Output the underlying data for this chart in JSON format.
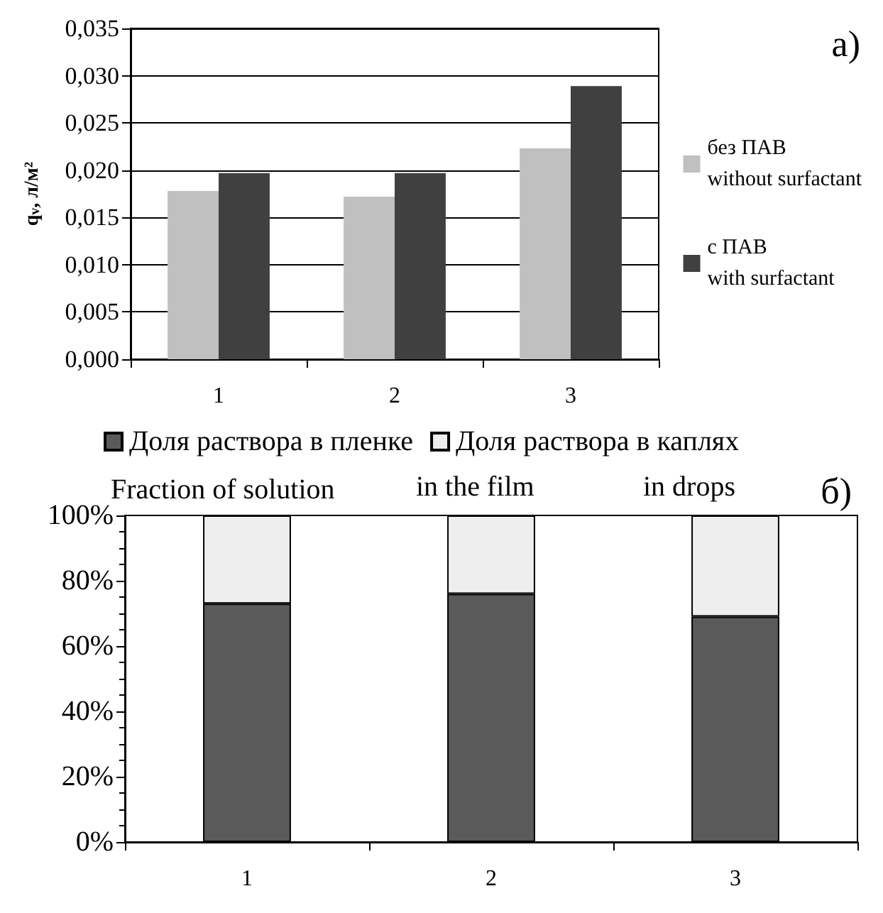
{
  "chart_data": [
    {
      "type": "bar",
      "annotations": [
        "а)"
      ],
      "ylabel": "q$_{v}$, л/м²",
      "categories": [
        "1",
        "2",
        "3"
      ],
      "series": [
        {
          "name": "без ПАВ\nwithout surfactant",
          "color": "#c0c0c0",
          "values": [
            0.0178,
            0.0172,
            0.0223
          ]
        },
        {
          "name": "с ПАВ\nwith surfactant",
          "color": "#404040",
          "values": [
            0.0197,
            0.0197,
            0.0289
          ]
        }
      ],
      "ylim": [
        0,
        0.035
      ],
      "yticks": [
        {
          "value": 0,
          "label": "0,000"
        },
        {
          "value": 0.005,
          "label": "0,005"
        },
        {
          "value": 0.01,
          "label": "0,010"
        },
        {
          "value": 0.015,
          "label": "0,015"
        },
        {
          "value": 0.02,
          "label": "0,020"
        },
        {
          "value": 0.025,
          "label": "0,025"
        },
        {
          "value": 0.03,
          "label": "0,030"
        },
        {
          "value": 0.035,
          "label": "0,035"
        }
      ],
      "grid": "y",
      "legend": "right"
    },
    {
      "type": "bar",
      "stacked": true,
      "categories": [
        "1",
        "2",
        "3"
      ],
      "series": [
        {
          "name": "Доля раствора в пленке",
          "color": "#5a5a5a",
          "values": [
            73,
            76,
            69
          ]
        },
        {
          "name": "Доля раствора в каплях",
          "color": "#eeeeee",
          "values": [
            27,
            24,
            31
          ]
        }
      ],
      "ylim": [
        0,
        100
      ],
      "yticks": [
        {
          "value": 0,
          "label": "0%"
        },
        {
          "value": 20,
          "label": "20%"
        },
        {
          "value": 40,
          "label": "40%"
        },
        {
          "value": 60,
          "label": "60%"
        },
        {
          "value": 80,
          "label": "80%"
        },
        {
          "value": 100,
          "label": "100%"
        }
      ],
      "annotations": [
        "Fraction of solution",
        "in the film",
        "in drops",
        "б)"
      ],
      "grid": false,
      "legend": "top"
    }
  ]
}
